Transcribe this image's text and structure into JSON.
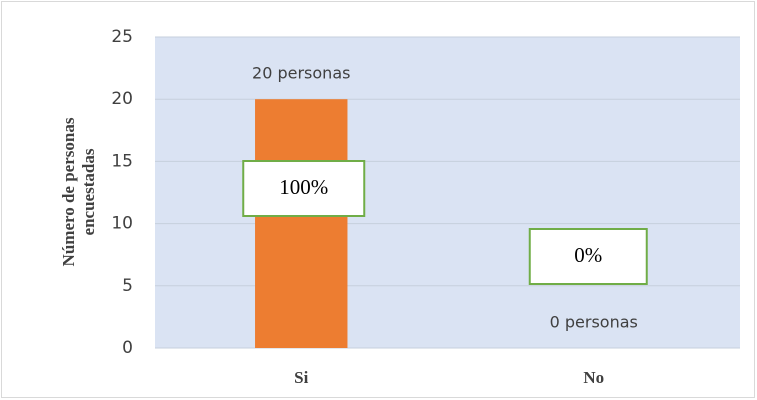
{
  "chart_data": {
    "type": "bar",
    "ylabel": [
      "Número de personas",
      "encuestadas"
    ],
    "categories": [
      "Si",
      "No"
    ],
    "values": [
      20,
      0
    ],
    "value_labels": [
      "20 personas",
      "0 personas"
    ],
    "annotations": [
      "100%",
      "0%"
    ],
    "color": "#ed7d31",
    "ylim": [
      0,
      25
    ],
    "yticks": [
      0,
      5,
      10,
      15,
      20,
      25
    ],
    "grid": true
  }
}
